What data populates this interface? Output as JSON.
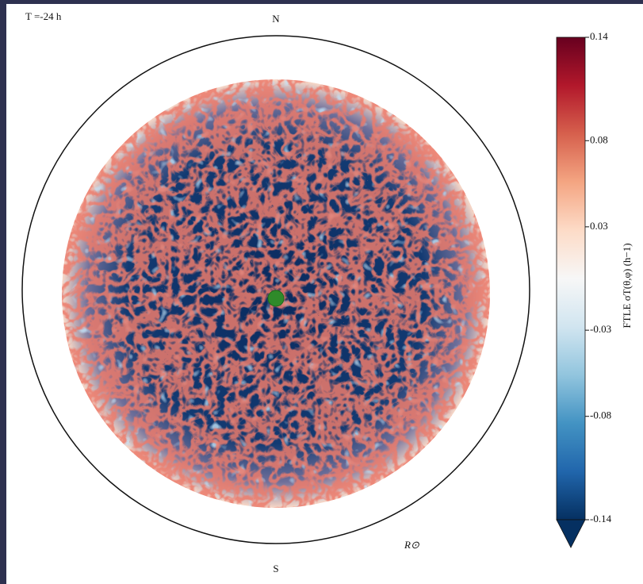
{
  "chart_data": {
    "type": "disk-map",
    "time_label": "T =-24 h",
    "north_label": "N",
    "south_label": "S",
    "radius_label": "R⊙",
    "colorbar_label": "FTLE σT(θ,φ) (h−1)",
    "colormap_colors": [
      "#053061",
      "#2166ac",
      "#4393c3",
      "#92c5de",
      "#d1e5f0",
      "#f7f7f7",
      "#fddbc7",
      "#f4a582",
      "#d6604d",
      "#b2182b",
      "#67001f"
    ],
    "clim": [
      -0.14,
      0.14
    ],
    "cticks": [
      0.14,
      0.08,
      0.03,
      -0.03,
      -0.08,
      -0.14
    ]
  }
}
